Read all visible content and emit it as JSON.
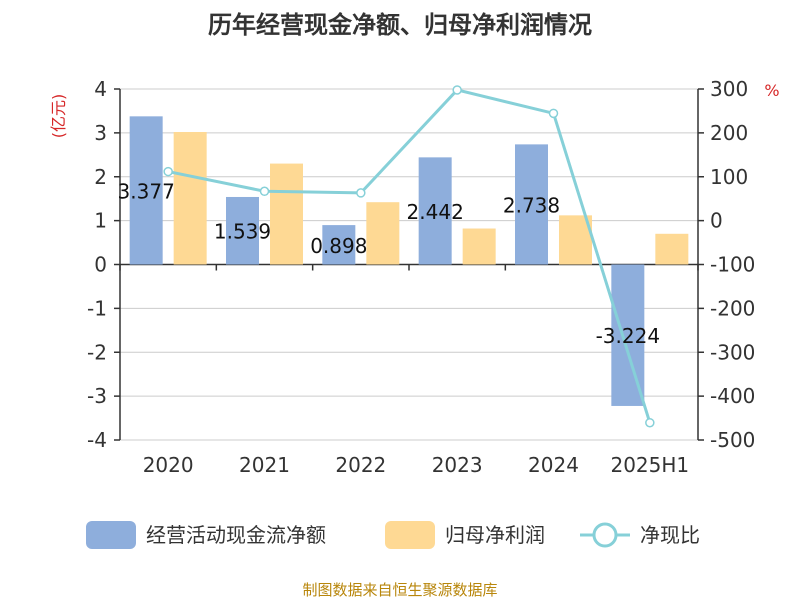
{
  "chart_data": {
    "type": "bar",
    "title": "历年经营现金净额、归母净利润情况",
    "categories": [
      "2020",
      "2021",
      "2022",
      "2023",
      "2024",
      "2025H1"
    ],
    "left_axis_unit": "(亿元)",
    "right_axis_unit": "%",
    "ylim": [
      -4,
      4
    ],
    "y_ticks": [
      "4",
      "3",
      "2",
      "1",
      "0",
      "-1",
      "-2",
      "-3",
      "-4"
    ],
    "y2lim": [
      -500,
      300
    ],
    "y2_ticks": [
      "300",
      "200",
      "100",
      "0",
      "-100",
      "-200",
      "-300",
      "-400",
      "-500"
    ],
    "grid": true,
    "legend_position": "bottom",
    "series": [
      {
        "name": "经营活动现金流净额",
        "type": "bar",
        "axis": "left",
        "color": "#8eaedc",
        "values": [
          3.377,
          1.539,
          0.898,
          2.442,
          2.738,
          -3.224
        ],
        "labels": [
          "3.377",
          "1.539",
          "0.898",
          "2.442",
          "2.738",
          "-3.224"
        ]
      },
      {
        "name": "归母净利润",
        "type": "bar",
        "axis": "left",
        "color": "#fed994",
        "values": [
          3.02,
          2.3,
          1.42,
          0.82,
          1.12,
          0.7
        ]
      },
      {
        "name": "净现比",
        "type": "line",
        "axis": "right",
        "color": "#86d0d8",
        "values": [
          111.8,
          66.9,
          63.2,
          297.8,
          244.5,
          -460.6
        ]
      }
    ],
    "source": "制图数据来自恒生聚源数据库"
  }
}
